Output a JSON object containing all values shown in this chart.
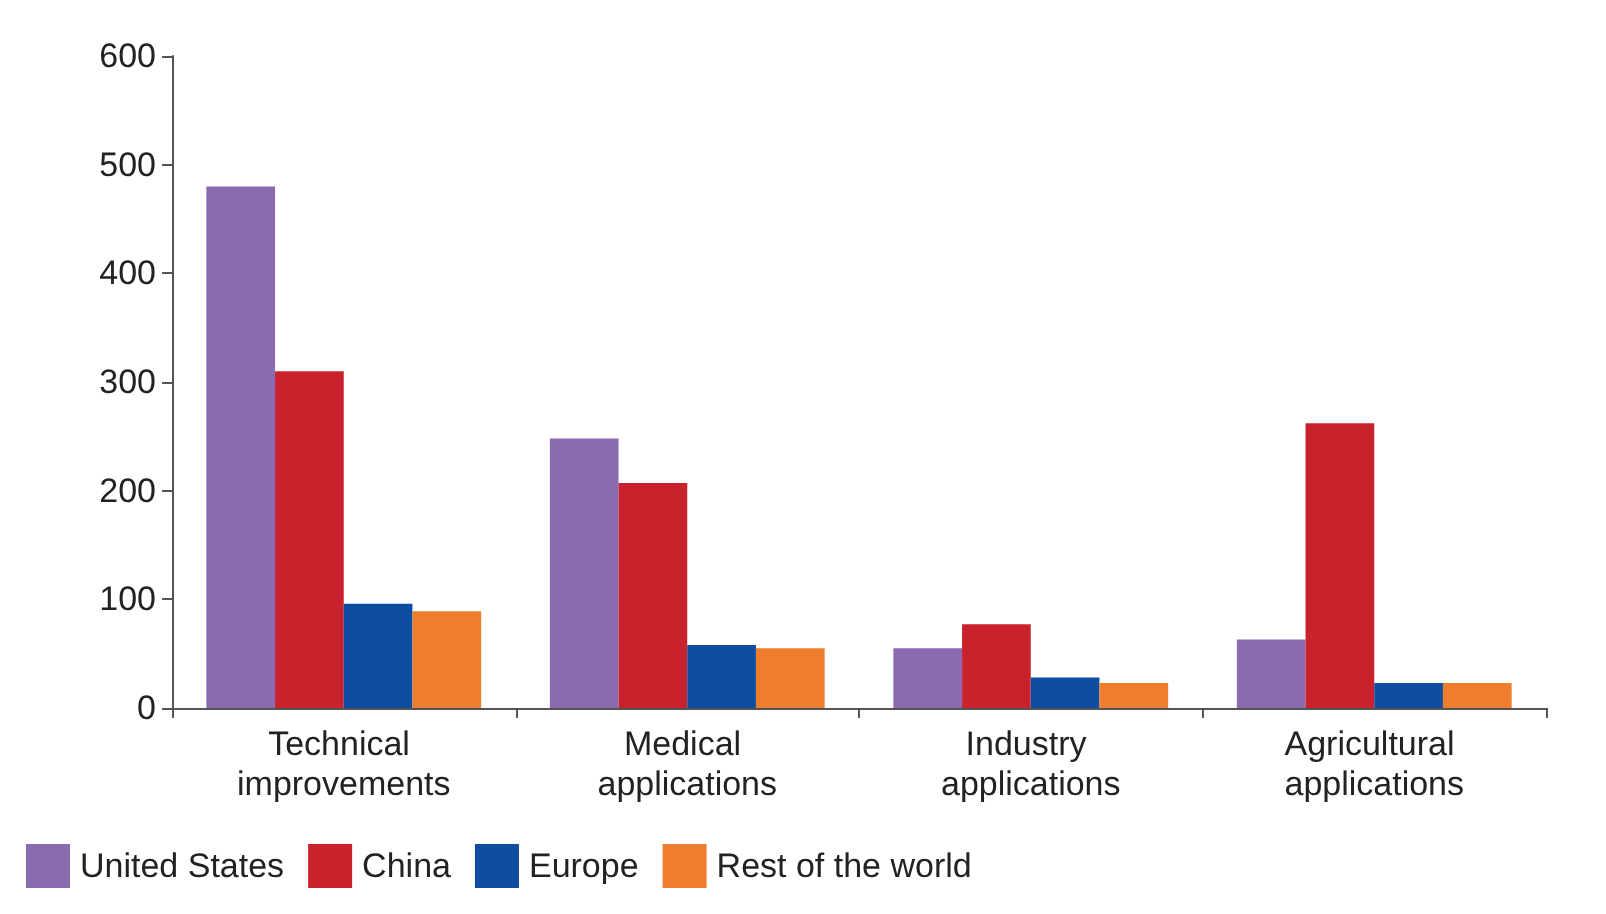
{
  "chart_data": {
    "type": "bar",
    "categories": [
      "Technical improvements",
      "Medical applications",
      "Industry applications",
      "Agricultural applications"
    ],
    "series": [
      {
        "name": "United States",
        "color": "#8a6bb0",
        "values": [
          480,
          248,
          55,
          63
        ]
      },
      {
        "name": "China",
        "color": "#c8222c",
        "values": [
          310,
          207,
          77,
          262
        ]
      },
      {
        "name": "Europe",
        "color": "#0d4ea2",
        "values": [
          96,
          58,
          28,
          23
        ]
      },
      {
        "name": "Rest of the world",
        "color": "#ee7d2d",
        "values": [
          89,
          55,
          23,
          23
        ]
      }
    ],
    "ylim": [
      0,
      600
    ],
    "yticks": [
      0,
      100,
      200,
      300,
      400,
      500,
      600
    ],
    "grid": false,
    "legend": "bottom left"
  }
}
